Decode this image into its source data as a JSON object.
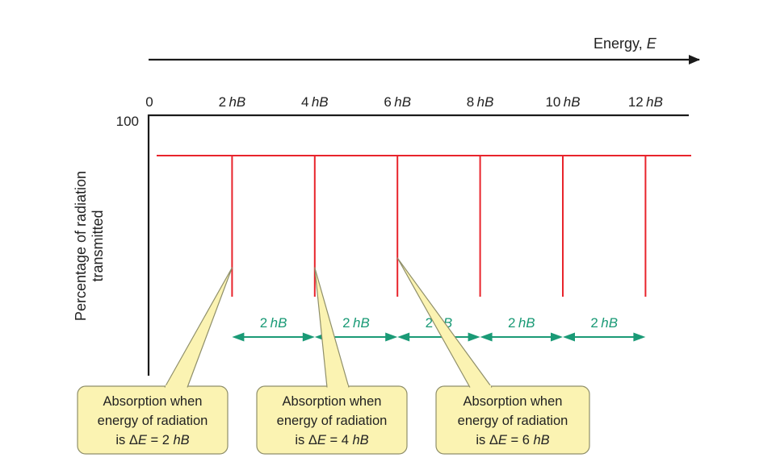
{
  "energy_axis": {
    "title": "Energy, ",
    "symbol": "E",
    "zero_label": "0",
    "ticks": [
      {
        "num": "2",
        "unit": "hB"
      },
      {
        "num": "4",
        "unit": "hB"
      },
      {
        "num": "6",
        "unit": "hB"
      },
      {
        "num": "8",
        "unit": "hB"
      },
      {
        "num": "10",
        "unit": "hB"
      },
      {
        "num": "12",
        "unit": "hB"
      }
    ]
  },
  "y_axis": {
    "title_line1": "Percentage of radiation",
    "title_line2": "transmitted",
    "top_label": "100"
  },
  "spacings": [
    {
      "num": "2",
      "unit": "hB"
    },
    {
      "num": "2",
      "unit": "hB"
    },
    {
      "num": "2",
      "unit": "hB"
    },
    {
      "num": "2",
      "unit": "hB"
    },
    {
      "num": "2",
      "unit": "hB"
    }
  ],
  "callouts": [
    {
      "line1": "Absorption when",
      "line2": "energy of radiation",
      "line3_pre": "is Δ",
      "line3_sym": "E",
      "line3_post": " = 2 ",
      "line3_unit": "hB"
    },
    {
      "line1": "Absorption when",
      "line2": "energy of radiation",
      "line3_pre": "is Δ",
      "line3_sym": "E",
      "line3_post": " = 4 ",
      "line3_unit": "hB"
    },
    {
      "line1": "Absorption when",
      "line2": "energy of radiation",
      "line3_pre": "is Δ",
      "line3_sym": "E",
      "line3_post": " = 6 ",
      "line3_unit": "hB"
    }
  ],
  "colors": {
    "absorption_line": "#e8242c",
    "spacing_arrow": "#1a9a76",
    "callout_fill": "#fbf3b2",
    "callout_stroke": "#8f8f6a",
    "axis": "#1a1a1a"
  }
}
